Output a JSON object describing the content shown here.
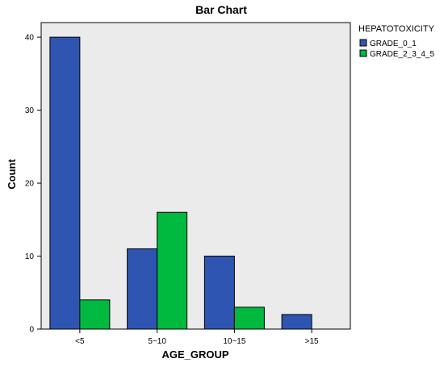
{
  "chart_data": {
    "type": "bar",
    "title": "Bar Chart",
    "xlabel": "AGE_GROUP",
    "ylabel": "Count",
    "categories": [
      "<5",
      "5~10",
      "10~15",
      ">15"
    ],
    "ylim": [
      0,
      42
    ],
    "yticks": [
      0,
      10,
      20,
      30,
      40
    ],
    "grid": false,
    "legend_title": "HEPATOTOXICITY",
    "legend_position": "top-right, outside plot",
    "series": [
      {
        "name": "GRADE_0_1",
        "color": "#2f55b2",
        "values": [
          40,
          11,
          10,
          2
        ]
      },
      {
        "name": "GRADE_2_3_4_5",
        "color": "#00b93f",
        "values": [
          4,
          16,
          3,
          0
        ]
      }
    ],
    "plot_background": "#ebebeb"
  }
}
